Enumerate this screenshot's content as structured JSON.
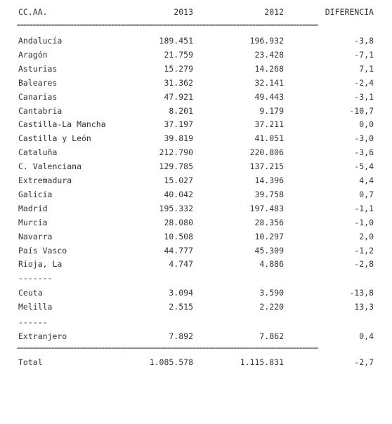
{
  "header": {
    "region": "CC.AA.",
    "year_a": "2013",
    "year_b": "2012",
    "diff": "DIFERENCIA"
  },
  "separator": "================================================================================================",
  "short_separator_a": "-------",
  "short_separator_b": "------",
  "rows_main": [
    {
      "name": "Andalucía",
      "v2013": "189.451",
      "v2012": "196.932",
      "diff": "-3,8"
    },
    {
      "name": "Aragón",
      "v2013": "21.759",
      "v2012": "23.428",
      "diff": "-7,1"
    },
    {
      "name": "Asturias",
      "v2013": "15.279",
      "v2012": "14.268",
      "diff": "7,1"
    },
    {
      "name": "Baleares",
      "v2013": "31.362",
      "v2012": "32.141",
      "diff": "-2,4"
    },
    {
      "name": "Canarias",
      "v2013": "47.921",
      "v2012": "49.443",
      "diff": "-3,1"
    },
    {
      "name": "Cantabria",
      "v2013": "8.201",
      "v2012": "9.179",
      "diff": "-10,7"
    },
    {
      "name": "Castilla-La Mancha",
      "v2013": "37.197",
      "v2012": "37.211",
      "diff": "0,0"
    },
    {
      "name": "Castilla y León",
      "v2013": "39.819",
      "v2012": "41.051",
      "diff": "-3,0"
    },
    {
      "name": "Cataluña",
      "v2013": "212.790",
      "v2012": "220.806",
      "diff": "-3,6"
    },
    {
      "name": "C. Valenciana",
      "v2013": "129.785",
      "v2012": "137.215",
      "diff": "-5,4"
    },
    {
      "name": "Extremadura",
      "v2013": "15.027",
      "v2012": "14.396",
      "diff": "4,4"
    },
    {
      "name": "Galicia",
      "v2013": "40.042",
      "v2012": "39.758",
      "diff": "0,7"
    },
    {
      "name": "Madrid",
      "v2013": "195.332",
      "v2012": "197.483",
      "diff": "-1,1"
    },
    {
      "name": "Murcia",
      "v2013": "28.080",
      "v2012": "28.356",
      "diff": "-1,0"
    },
    {
      "name": "Navarra",
      "v2013": "10.508",
      "v2012": "10.297",
      "diff": "2,0"
    },
    {
      "name": "País Vasco",
      "v2013": "44.777",
      "v2012": "45.309",
      "diff": "-1,2"
    },
    {
      "name": "Rioja, La",
      "v2013": "4.747",
      "v2012": "4.886",
      "diff": "-2,8"
    }
  ],
  "rows_cities": [
    {
      "name": "Ceuta",
      "v2013": "3.094",
      "v2012": "3.590",
      "diff": "-13,8"
    },
    {
      "name": "Melilla",
      "v2013": "2.515",
      "v2012": "2.220",
      "diff": "13,3"
    }
  ],
  "row_abroad": {
    "name": "Extranjero",
    "v2013": "7.892",
    "v2012": "7.862",
    "diff": "0,4"
  },
  "total": {
    "name": "Total",
    "v2013": "1.085.578",
    "v2012": "1.115.831",
    "diff": "-2,7"
  }
}
